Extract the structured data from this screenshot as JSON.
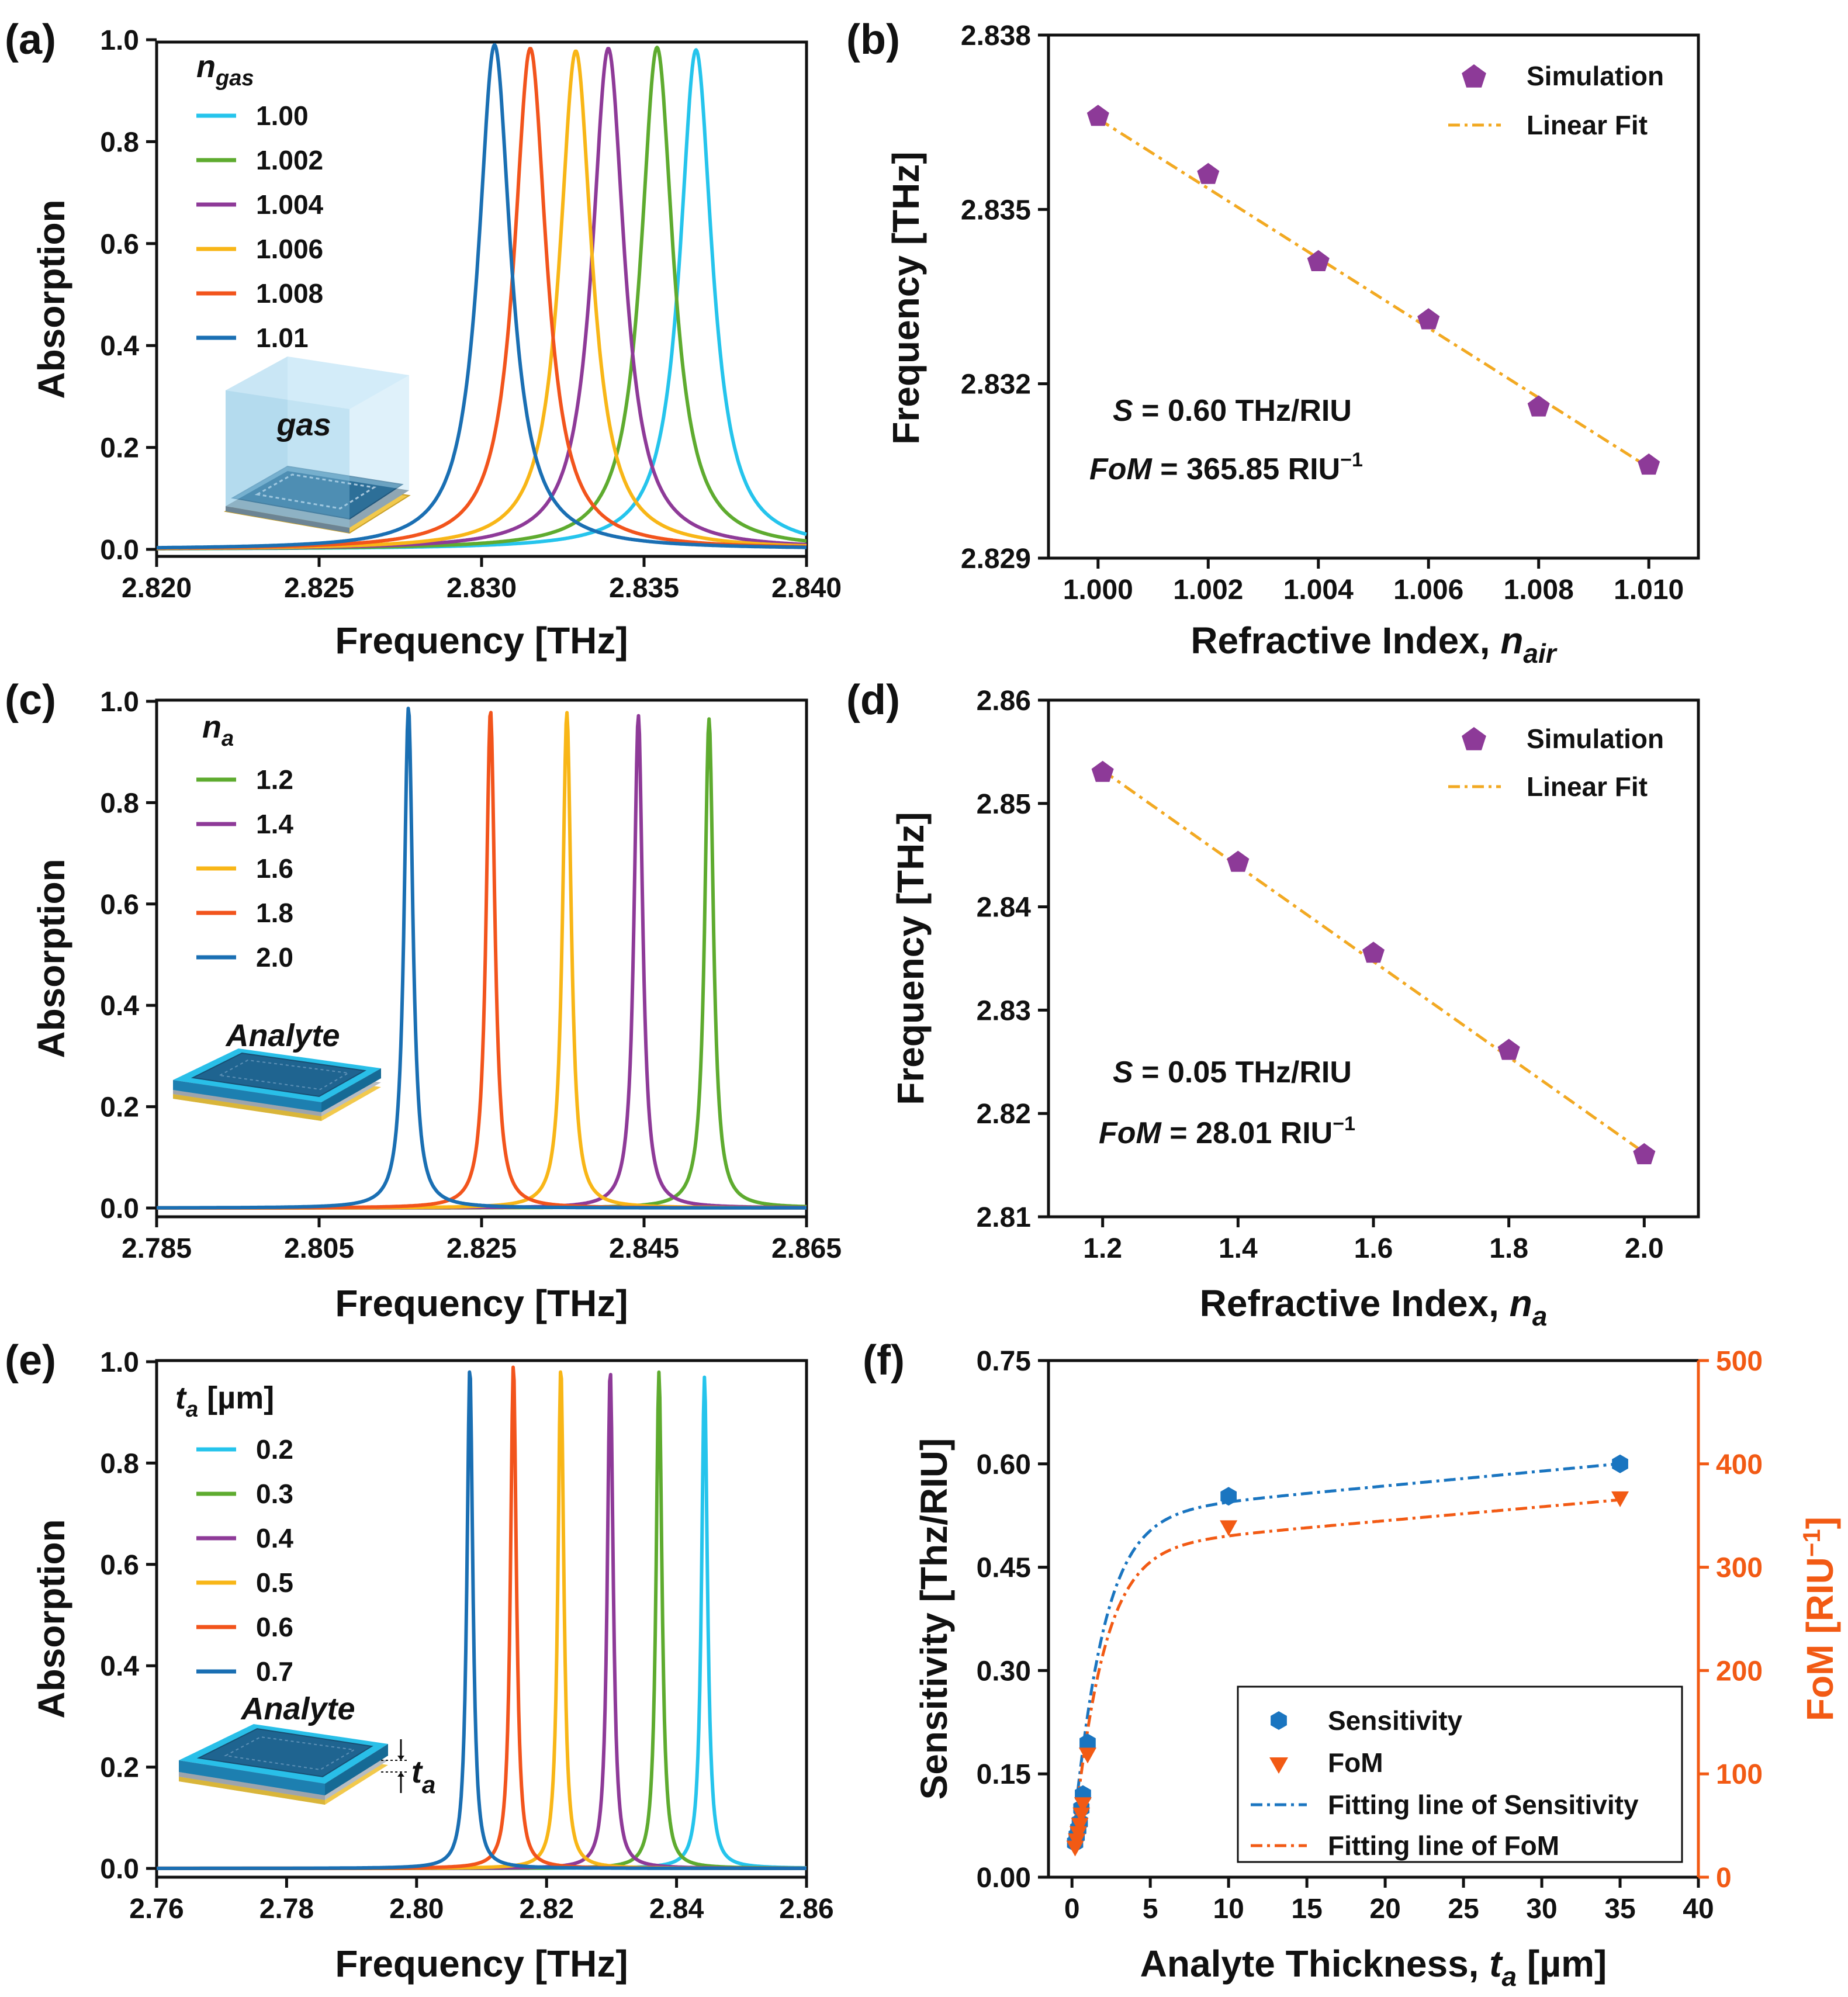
{
  "colors": {
    "lightblue": "#25c4ec",
    "green": "#5eab2f",
    "purple": "#8e3a98",
    "yellow": "#f8b617",
    "orange": "#f2541c",
    "blue": "#1a6fb3",
    "marker": "#8d3a98",
    "fit": "#f2a922",
    "sens": "#1a75c0",
    "fom": "#f25a14"
  },
  "chart_data": [
    {
      "id": "a",
      "type": "line",
      "panel_label": "(a)",
      "xlabel": "Frequency [THz]",
      "ylabel": "Absorption",
      "xlim": [
        2.82,
        2.84
      ],
      "ylim": [
        0,
        1.0
      ],
      "xticks": [
        "2.820",
        "2.825",
        "2.830",
        "2.835",
        "2.840"
      ],
      "yticks": [
        "0.0",
        "0.2",
        "0.4",
        "0.6",
        "0.8",
        "1.0"
      ],
      "legend_title_main": "n",
      "legend_title_sub": "gas",
      "inset_label": "gas",
      "gamma": 0.0012,
      "series": [
        {
          "name": "1.00",
          "color": "lightblue",
          "peak_x": 2.8366,
          "peak_y": 0.98
        },
        {
          "name": "1.002",
          "color": "green",
          "peak_x": 2.8354,
          "peak_y": 0.985
        },
        {
          "name": "1.004",
          "color": "purple",
          "peak_x": 2.8339,
          "peak_y": 0.983
        },
        {
          "name": "1.006",
          "color": "yellow",
          "peak_x": 2.8329,
          "peak_y": 0.978
        },
        {
          "name": "1.008",
          "color": "orange",
          "peak_x": 2.8315,
          "peak_y": 0.983
        },
        {
          "name": "1.01",
          "color": "blue",
          "peak_x": 2.8304,
          "peak_y": 0.99
        }
      ]
    },
    {
      "id": "b",
      "type": "scatter",
      "panel_label": "(b)",
      "xlabel_main": "Refractive Index, ",
      "xlabel_var": "n",
      "xlabel_sub": "air",
      "ylabel": "Frequency [THz]",
      "xlim": [
        0.9991,
        1.0109
      ],
      "ylim": [
        2.829,
        2.838
      ],
      "xticks": [
        "1.000",
        "1.002",
        "1.004",
        "1.006",
        "1.008",
        "1.010"
      ],
      "yticks": [
        "2.829",
        "2.832",
        "2.835",
        "2.838"
      ],
      "x": [
        1.0,
        1.002,
        1.004,
        1.006,
        1.008,
        1.01
      ],
      "y": [
        2.8366,
        2.8356,
        2.8341,
        2.8331,
        2.8316,
        2.8306
      ],
      "fit": [
        2.83656,
        2.83056
      ],
      "legend": [
        "Simulation",
        "Linear Fit"
      ],
      "s_var": "S",
      "s_text": " = 0.60 THz/RIU",
      "fom_var": "FoM",
      "fom_text": " = 365.85 RIU",
      "fom_sup": "−1"
    },
    {
      "id": "c",
      "type": "line",
      "panel_label": "(c)",
      "xlabel": "Frequency [THz]",
      "ylabel": "Absorption",
      "xlim": [
        2.785,
        2.865
      ],
      "ylim": [
        0,
        1.0
      ],
      "xticks": [
        "2.785",
        "2.805",
        "2.825",
        "2.845",
        "2.865"
      ],
      "yticks": [
        "0.0",
        "0.2",
        "0.4",
        "0.6",
        "0.8",
        "1.0"
      ],
      "legend_title_main": "n",
      "legend_title_sub": "a",
      "inset_label": "Analyte",
      "gamma": 0.0013,
      "series": [
        {
          "name": "1.2",
          "color": "green",
          "peak_x": 2.853,
          "peak_y": 0.965
        },
        {
          "name": "1.4",
          "color": "purple",
          "peak_x": 2.8443,
          "peak_y": 0.972
        },
        {
          "name": "1.6",
          "color": "yellow",
          "peak_x": 2.8355,
          "peak_y": 0.978
        },
        {
          "name": "1.8",
          "color": "orange",
          "peak_x": 2.8261,
          "peak_y": 0.982
        },
        {
          "name": "2.0",
          "color": "blue",
          "peak_x": 2.816,
          "peak_y": 0.988
        }
      ]
    },
    {
      "id": "d",
      "type": "scatter",
      "panel_label": "(d)",
      "xlabel_main": "Refractive Index, ",
      "xlabel_var": "n",
      "xlabel_sub": "a",
      "ylabel": "Frequency [THz]",
      "xlim": [
        1.12,
        2.08
      ],
      "ylim": [
        2.81,
        2.86
      ],
      "xticks": [
        "1.2",
        "1.4",
        "1.6",
        "1.8",
        "2.0"
      ],
      "yticks": [
        "2.81",
        "2.82",
        "2.83",
        "2.84",
        "2.85",
        "2.86"
      ],
      "x": [
        1.2,
        1.4,
        1.6,
        1.8,
        2.0
      ],
      "y": [
        2.853,
        2.8443,
        2.8355,
        2.8261,
        2.816
      ],
      "fit": [
        2.8532,
        2.8162
      ],
      "legend": [
        "Simulation",
        "Linear Fit"
      ],
      "s_var": "S",
      "s_text": " = 0.05 THz/RIU",
      "fom_var": "FoM",
      "fom_text": " = 28.01 RIU",
      "fom_sup": "−1"
    },
    {
      "id": "e",
      "type": "line",
      "panel_label": "(e)",
      "xlabel": "Frequency [THz]",
      "ylabel": "Absorption",
      "xlim": [
        2.76,
        2.86
      ],
      "ylim": [
        0,
        1.0
      ],
      "xticks": [
        "2.76",
        "2.78",
        "2.80",
        "2.82",
        "2.84",
        "2.86"
      ],
      "yticks": [
        "0.0",
        "0.2",
        "0.4",
        "0.6",
        "0.8",
        "1.0"
      ],
      "legend_title_main": "t",
      "legend_title_sub": "a",
      "legend_title_unit": " [µm]",
      "inset_label": "Analyte",
      "inset_t": "t",
      "inset_t_sub": "a",
      "gamma": 0.0011,
      "series": [
        {
          "name": "0.2",
          "color": "lightblue",
          "peak_x": 2.8443,
          "peak_y": 0.97
        },
        {
          "name": "0.3",
          "color": "green",
          "peak_x": 2.8373,
          "peak_y": 0.98
        },
        {
          "name": "0.4",
          "color": "purple",
          "peak_x": 2.8298,
          "peak_y": 0.985
        },
        {
          "name": "0.5",
          "color": "yellow",
          "peak_x": 2.8222,
          "peak_y": 0.99
        },
        {
          "name": "0.6",
          "color": "orange",
          "peak_x": 2.8149,
          "peak_y": 0.995
        },
        {
          "name": "0.7",
          "color": "blue",
          "peak_x": 2.8082,
          "peak_y": 0.99
        }
      ]
    },
    {
      "id": "f",
      "type": "scatter",
      "panel_label": "(f)",
      "xlabel_main": "Analyte Thickness, ",
      "xlabel_var": "t",
      "xlabel_sub": "a",
      "xlabel_unit": " [µm]",
      "ylabel": "Sensitivity [Thz/RIU]",
      "ylabel_right": "FoM [RIU",
      "ylabel_right_sup": "−1",
      "ylabel_right_end": "]",
      "xlim": [
        -1.5,
        40
      ],
      "ylim": [
        0,
        0.75
      ],
      "y2lim": [
        0,
        500
      ],
      "xticks": [
        "0",
        "5",
        "10",
        "15",
        "20",
        "25",
        "30",
        "35",
        "40"
      ],
      "yticks": [
        "0.00",
        "0.15",
        "0.30",
        "0.45",
        "0.60",
        "0.75"
      ],
      "y2ticks": [
        "0",
        "100",
        "200",
        "300",
        "400",
        "500"
      ],
      "x": [
        0.2,
        0.3,
        0.4,
        0.5,
        0.6,
        0.7,
        1.0,
        10,
        35
      ],
      "sensitivity": [
        0.05,
        0.06,
        0.07,
        0.08,
        0.1,
        0.12,
        0.195,
        0.553,
        0.6
      ],
      "fom": [
        28,
        35,
        42,
        50,
        60,
        70,
        118,
        338,
        366
      ],
      "legend": [
        "Sensitivity",
        "FoM",
        "Fitting line of Sensitivity",
        "Fitting line of FoM"
      ]
    }
  ]
}
